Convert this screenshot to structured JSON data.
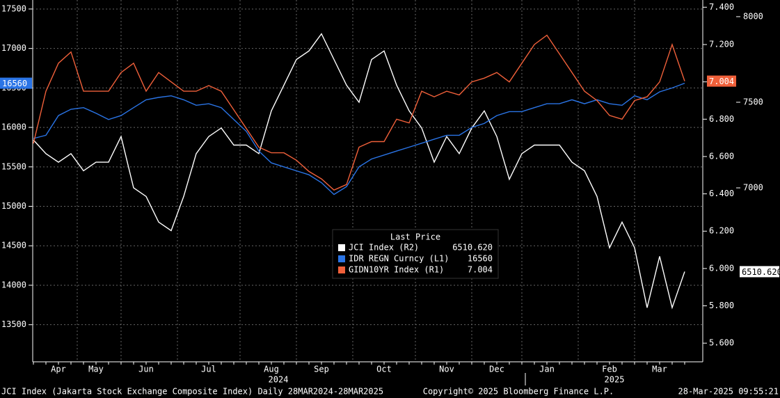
{
  "chart_data": {
    "type": "line",
    "categories": [
      null,
      null,
      "Apr",
      null,
      null,
      "May",
      null,
      null,
      null,
      "Jun",
      null,
      null,
      null,
      null,
      "Jul",
      null,
      null,
      null,
      null,
      "Aug",
      null,
      null,
      null,
      "Sep",
      null,
      null,
      null,
      null,
      "Oct",
      null,
      null,
      null,
      null,
      "Nov",
      null,
      null,
      null,
      "Dec",
      null,
      null,
      null,
      "Jan",
      null,
      null,
      null,
      null,
      "Feb",
      null,
      null,
      null,
      "Mar",
      null,
      null
    ],
    "year_labels": [
      "2024",
      "2025"
    ],
    "legend_title": "Last Price",
    "series": [
      {
        "name": "JCI Index  (R2)",
        "axis": "y3",
        "color": "#ffffff",
        "last_label": "6510.620",
        "values": [
          7280,
          7200,
          7150,
          7200,
          7100,
          7150,
          7150,
          7300,
          7000,
          6950,
          6800,
          6750,
          6950,
          7200,
          7300,
          7350,
          7250,
          7250,
          7200,
          7450,
          7600,
          7750,
          7800,
          7900,
          7750,
          7600,
          7500,
          7750,
          7800,
          7600,
          7450,
          7350,
          7150,
          7300,
          7200,
          7350,
          7450,
          7300,
          7050,
          7200,
          7250,
          7250,
          7250,
          7150,
          7100,
          6950,
          6650,
          6800,
          6650,
          6300,
          6600,
          6300,
          6510.62
        ]
      },
      {
        "name": "IDR REGN Curncy  (L1)",
        "axis": "y",
        "color": "#2a74e6",
        "last_label": "16560",
        "values": [
          15860,
          15900,
          16150,
          16230,
          16250,
          16180,
          16100,
          16150,
          16250,
          16350,
          16380,
          16400,
          16350,
          16280,
          16300,
          16250,
          16100,
          15950,
          15700,
          15550,
          15500,
          15450,
          15400,
          15300,
          15150,
          15250,
          15500,
          15600,
          15650,
          15700,
          15750,
          15800,
          15850,
          15900,
          15900,
          16000,
          16050,
          16150,
          16200,
          16200,
          16250,
          16300,
          16300,
          16350,
          16300,
          16350,
          16300,
          16280,
          16400,
          16350,
          16450,
          16500,
          16560
        ]
      },
      {
        "name": "GIDN10YR Index  (R1)",
        "axis": "y2",
        "color": "#f0603a",
        "last_label": "7.004",
        "values": [
          6.67,
          6.95,
          7.1,
          7.16,
          6.95,
          6.95,
          6.95,
          7.05,
          7.1,
          6.95,
          7.05,
          7.0,
          6.95,
          6.95,
          6.98,
          6.95,
          6.85,
          6.75,
          6.65,
          6.62,
          6.62,
          6.58,
          6.52,
          6.48,
          6.42,
          6.45,
          6.65,
          6.68,
          6.68,
          6.8,
          6.78,
          6.95,
          6.92,
          6.95,
          6.93,
          7.0,
          7.02,
          7.05,
          7.0,
          7.1,
          7.2,
          7.25,
          7.15,
          7.05,
          6.95,
          6.9,
          6.82,
          6.8,
          6.9,
          6.92,
          7.0,
          7.2,
          7.004
        ]
      }
    ],
    "ylim": [
      13030,
      17570
    ],
    "yticks": [
      13500,
      14000,
      14500,
      15000,
      15500,
      16000,
      16500,
      17000,
      17500
    ],
    "y2lim": [
      5.5,
      7.42
    ],
    "y2ticks": [
      {
        "value": 5.6,
        "label": "5.600"
      },
      {
        "value": 5.8,
        "label": "5.800"
      },
      {
        "value": 6.0,
        "label": "6.000"
      },
      {
        "value": 6.2,
        "label": "6.200"
      },
      {
        "value": 6.4,
        "label": "6.400"
      },
      {
        "value": 6.6,
        "label": "6.600"
      },
      {
        "value": 6.8,
        "label": "6.800"
      },
      {
        "value": 7.0,
        "label": "7.000"
      },
      {
        "value": 7.2,
        "label": "7.200"
      },
      {
        "value": 7.4,
        "label": "7.400"
      }
    ],
    "y3lim": [
      5984,
      8077
    ],
    "y3ticks": [
      7000,
      7500,
      8000
    ],
    "grid": true,
    "footer_left": "JCI Index (Jakarta Stock Exchange Composite Index)  Daily 28MAR2024-28MAR2025",
    "footer_center": "Copyright© 2025 Bloomberg Finance L.P.",
    "footer_right": "28-Mar-2025 09:55:21"
  }
}
